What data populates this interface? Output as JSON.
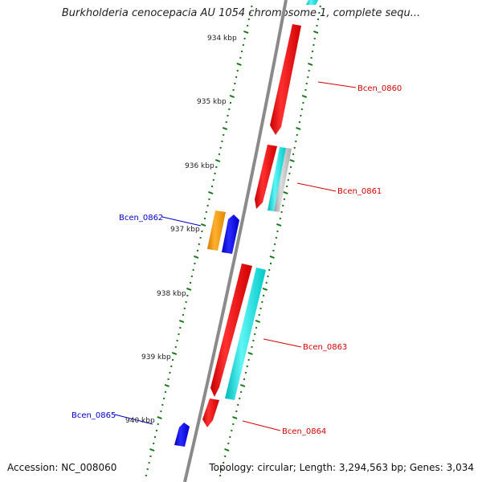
{
  "title": "Burkholderia cenocepacia AU 1054 chromosome 1, complete sequ...",
  "footer": {
    "accession": "Accession: NC_008060",
    "summary": "Topology: circular; Length: 3,294,563 bp; Genes: 3,034"
  },
  "ticks": [
    "934 kbp",
    "935 kbp",
    "936 kbp",
    "937 kbp",
    "938 kbp",
    "939 kbp",
    "940 kbp"
  ],
  "gene_labels": [
    {
      "text": "Bcen_0860",
      "strand": "forward"
    },
    {
      "text": "Bcen_0861",
      "strand": "forward"
    },
    {
      "text": "Bcen_0862",
      "strand": "reverse"
    },
    {
      "text": "Bcen_0863",
      "strand": "forward"
    },
    {
      "text": "Bcen_0864",
      "strand": "forward"
    },
    {
      "text": "Bcen_0865",
      "strand": "reverse"
    }
  ],
  "colors": {
    "forward_label": "#d40000",
    "reverse_label": "#0000cc",
    "backbone": "#8a8a8a",
    "tick": "#1a7a1a",
    "cds_forward": "#ff0000",
    "cds_reverse": "#0000ff",
    "orange_feature": "#ff9900",
    "cyan_feature": "#00e5e5",
    "grey_feature": "#bbbbbb"
  }
}
